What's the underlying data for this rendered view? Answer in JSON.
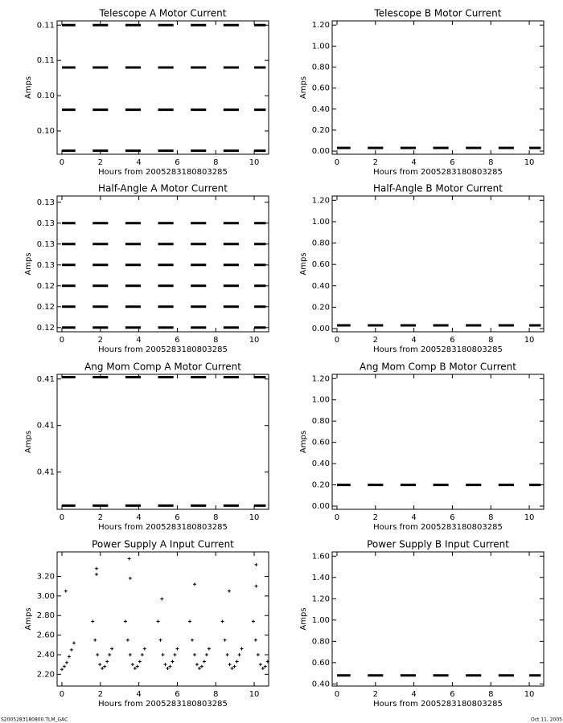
{
  "chart_data": [
    {
      "type": "line",
      "title": "Telescope A Motor Current",
      "xlabel": "Hours from 2005283180803285",
      "ylabel": "Amps",
      "x": [
        0,
        0.7,
        1.15,
        1.6,
        2.4,
        2.85,
        3.3,
        4.1,
        4.55,
        5.0,
        5.8,
        6.25,
        6.7,
        7.5,
        7.95,
        8.4,
        9.2,
        9.6,
        10.0,
        10.6
      ],
      "xlim": [
        -0.25,
        10.75
      ],
      "xticks": [
        0,
        2,
        4,
        6,
        8,
        10
      ],
      "ylim": [
        0.10367,
        0.10556
      ],
      "yticks": [
        {
          "value": 0.104,
          "label": "0.10"
        },
        {
          "value": 0.1045,
          "label": "0.10"
        },
        {
          "value": 0.105,
          "label": "0.11"
        },
        {
          "value": 0.1055,
          "label": "0.11"
        }
      ],
      "series": [
        {
          "color": "#000000",
          "values": [
            0.1055,
            0.1055,
            null,
            0.1055,
            0.1055,
            null,
            0.1055,
            0.1055,
            null,
            0.1055,
            0.1055,
            null,
            0.1055,
            0.1055,
            null,
            0.1055,
            0.1055,
            null,
            0.1055,
            0.1055
          ]
        },
        {
          "color": "#000000",
          "values": [
            0.1049,
            0.1049,
            null,
            0.1049,
            0.1049,
            null,
            0.1049,
            0.1049,
            null,
            0.1049,
            0.1049,
            null,
            0.1049,
            0.1049,
            null,
            0.1049,
            0.1049,
            null,
            0.1049,
            0.1049
          ]
        },
        {
          "color": "#000000",
          "values": [
            0.1043,
            0.1043,
            null,
            0.1043,
            0.1043,
            null,
            0.1043,
            0.1043,
            null,
            0.1043,
            0.1043,
            null,
            0.1043,
            0.1043,
            null,
            0.1043,
            0.1043,
            null,
            0.1043,
            0.1043
          ]
        },
        {
          "color": "#000000",
          "values": [
            0.10372,
            0.10372,
            null,
            0.10372,
            0.10372,
            null,
            0.10372,
            0.10372,
            null,
            0.10372,
            0.10372,
            null,
            0.10372,
            0.10372,
            null,
            0.10372,
            0.10372,
            null,
            0.10372,
            0.10372
          ]
        }
      ]
    },
    {
      "type": "line",
      "title": "Telescope B Motor Current",
      "xlabel": "Hours from 2005283180803285",
      "ylabel": "Amps",
      "x": [
        0,
        0.7,
        1.15,
        1.6,
        2.4,
        2.85,
        3.3,
        4.1,
        4.55,
        5.0,
        5.8,
        6.25,
        6.7,
        7.5,
        7.95,
        8.4,
        9.2,
        9.6,
        10.0,
        10.6
      ],
      "xlim": [
        -0.25,
        10.75
      ],
      "xticks": [
        0,
        2,
        4,
        6,
        8,
        10
      ],
      "ylim": [
        -0.03,
        1.24
      ],
      "yticks": [
        {
          "value": 0,
          "label": "0.00"
        },
        {
          "value": 0.2,
          "label": "0.20"
        },
        {
          "value": 0.4,
          "label": "0.40"
        },
        {
          "value": 0.6,
          "label": "0.60"
        },
        {
          "value": 0.8,
          "label": "0.80"
        },
        {
          "value": 1,
          "label": "1.00"
        },
        {
          "value": 1.2,
          "label": "1.20"
        }
      ],
      "series": [
        {
          "color": "#000000",
          "values": [
            0.03,
            0.03,
            null,
            0.03,
            0.03,
            null,
            0.03,
            0.03,
            null,
            0.03,
            0.03,
            null,
            0.03,
            0.03,
            null,
            0.03,
            0.03,
            null,
            0.03,
            0.03
          ]
        }
      ]
    },
    {
      "type": "line",
      "title": "Half-Angle A Motor Current",
      "xlabel": "Hours from 2005283180803285",
      "ylabel": "Amps",
      "x": [
        0,
        0.7,
        1.15,
        1.6,
        2.4,
        2.85,
        3.3,
        4.1,
        4.55,
        5.0,
        5.8,
        6.25,
        6.7,
        7.5,
        7.95,
        8.4,
        9.2,
        9.6,
        10.0,
        10.6
      ],
      "xlim": [
        -0.25,
        10.75
      ],
      "xticks": [
        0,
        2,
        4,
        6,
        8,
        10
      ],
      "ylim": [
        0.1234,
        0.12665
      ],
      "yticks": [
        {
          "value": 0.1235,
          "label": "0.12"
        },
        {
          "value": 0.124,
          "label": "0.12"
        },
        {
          "value": 0.1245,
          "label": "0.12"
        },
        {
          "value": 0.125,
          "label": "0.13"
        },
        {
          "value": 0.1255,
          "label": "0.13"
        },
        {
          "value": 0.126,
          "label": "0.13"
        },
        {
          "value": 0.1265,
          "label": "0.13"
        }
      ],
      "series": [
        {
          "color": "#000000",
          "values": [
            0.126,
            0.126,
            null,
            0.126,
            0.126,
            null,
            0.126,
            0.126,
            null,
            0.126,
            0.126,
            null,
            0.126,
            0.126,
            null,
            0.126,
            0.126,
            null,
            0.126,
            0.126
          ]
        },
        {
          "color": "#000000",
          "values": [
            0.1255,
            0.1255,
            null,
            0.1255,
            0.1255,
            null,
            0.1255,
            0.1255,
            null,
            0.1255,
            0.1255,
            null,
            0.1255,
            0.1255,
            null,
            0.1255,
            0.1255,
            null,
            0.1255,
            0.1255
          ]
        },
        {
          "color": "#000000",
          "values": [
            0.125,
            0.125,
            null,
            0.125,
            0.125,
            null,
            0.125,
            0.125,
            null,
            0.125,
            0.125,
            null,
            0.125,
            0.125,
            null,
            0.125,
            0.125,
            null,
            0.125,
            0.125
          ]
        },
        {
          "color": "#000000",
          "values": [
            0.1245,
            0.1245,
            null,
            0.1245,
            0.1245,
            null,
            0.1245,
            0.1245,
            null,
            0.1245,
            0.1245,
            null,
            0.1245,
            0.1245,
            null,
            0.1245,
            0.1245,
            null,
            0.1245,
            0.1245
          ]
        },
        {
          "color": "#000000",
          "values": [
            0.124,
            0.124,
            null,
            0.124,
            0.124,
            null,
            0.124,
            0.124,
            null,
            0.124,
            0.124,
            null,
            0.124,
            0.124,
            null,
            0.124,
            0.124,
            null,
            0.124,
            0.124
          ]
        },
        {
          "color": "#000000",
          "values": [
            0.1235,
            0.1235,
            null,
            0.1235,
            0.1235,
            null,
            0.1235,
            0.1235,
            null,
            0.1235,
            0.1235,
            null,
            0.1235,
            0.1235,
            null,
            0.1235,
            0.1235,
            null,
            0.1235,
            0.1235
          ]
        }
      ]
    },
    {
      "type": "line",
      "title": "Half-Angle B Motor Current",
      "xlabel": "Hours from 2005283180803285",
      "ylabel": "Amps",
      "x": [
        0,
        0.7,
        1.15,
        1.6,
        2.4,
        2.85,
        3.3,
        4.1,
        4.55,
        5.0,
        5.8,
        6.25,
        6.7,
        7.5,
        7.95,
        8.4,
        9.2,
        9.6,
        10.0,
        10.6
      ],
      "xlim": [
        -0.25,
        10.75
      ],
      "xticks": [
        0,
        2,
        4,
        6,
        8,
        10
      ],
      "ylim": [
        -0.03,
        1.24
      ],
      "yticks": [
        {
          "value": 0,
          "label": "0.00"
        },
        {
          "value": 0.2,
          "label": "0.20"
        },
        {
          "value": 0.4,
          "label": "0.40"
        },
        {
          "value": 0.6,
          "label": "0.60"
        },
        {
          "value": 0.8,
          "label": "0.80"
        },
        {
          "value": 1,
          "label": "1.00"
        },
        {
          "value": 1.2,
          "label": "1.20"
        }
      ],
      "series": [
        {
          "color": "#000000",
          "values": [
            0.03,
            0.03,
            null,
            0.03,
            0.03,
            null,
            0.03,
            0.03,
            null,
            0.03,
            0.03,
            null,
            0.03,
            0.03,
            null,
            0.03,
            0.03,
            null,
            0.03,
            0.03
          ]
        }
      ]
    },
    {
      "type": "line",
      "title": "Ang Mom Comp A Motor Current",
      "xlabel": "Hours from 2005283180803285",
      "ylabel": "Amps",
      "x": [
        0,
        0.7,
        1.15,
        1.6,
        2.4,
        2.85,
        3.3,
        4.1,
        4.55,
        5.0,
        5.8,
        6.25,
        6.7,
        7.5,
        7.95,
        8.4,
        9.2,
        9.6,
        10.0,
        10.6
      ],
      "xlim": [
        -0.25,
        10.75
      ],
      "xticks": [
        0,
        2,
        4,
        6,
        8,
        10
      ],
      "ylim": [
        0.4101,
        0.41155
      ],
      "yticks": [
        {
          "value": 0.4105,
          "label": "0.41"
        },
        {
          "value": 0.411,
          "label": "0.41"
        },
        {
          "value": 0.4115,
          "label": "0.41"
        }
      ],
      "series": [
        {
          "color": "#000000",
          "values": [
            0.41152,
            0.41152,
            null,
            0.41152,
            0.41152,
            null,
            0.41152,
            0.41152,
            null,
            0.41152,
            0.41152,
            null,
            0.41152,
            0.41152,
            null,
            0.41152,
            0.41152,
            null,
            0.41152,
            0.41152
          ]
        },
        {
          "color": "#000000",
          "values": [
            0.41014,
            0.41014,
            null,
            0.41014,
            0.41014,
            null,
            0.41014,
            0.41014,
            null,
            0.41014,
            0.41014,
            null,
            0.41014,
            0.41014,
            null,
            0.41014,
            0.41014,
            null,
            0.41014,
            0.41014
          ]
        }
      ]
    },
    {
      "type": "line",
      "title": "Ang Mom Comp B Motor Current",
      "xlabel": "Hours from 2005283180803285",
      "ylabel": "Amps",
      "x": [
        0,
        0.7,
        1.15,
        1.6,
        2.4,
        2.85,
        3.3,
        4.1,
        4.55,
        5.0,
        5.8,
        6.25,
        6.7,
        7.5,
        7.95,
        8.4,
        9.2,
        9.6,
        10.0,
        10.6
      ],
      "xlim": [
        -0.25,
        10.75
      ],
      "xticks": [
        0,
        2,
        4,
        6,
        8,
        10
      ],
      "ylim": [
        -0.03,
        1.24
      ],
      "yticks": [
        {
          "value": 0,
          "label": "0.00"
        },
        {
          "value": 0.2,
          "label": "0.20"
        },
        {
          "value": 0.4,
          "label": "0.40"
        },
        {
          "value": 0.6,
          "label": "0.60"
        },
        {
          "value": 0.8,
          "label": "0.80"
        },
        {
          "value": 1,
          "label": "1.00"
        },
        {
          "value": 1.2,
          "label": "1.20"
        }
      ],
      "series": [
        {
          "color": "#000000",
          "values": [
            0.2,
            0.2,
            null,
            0.2,
            0.2,
            null,
            0.2,
            0.2,
            null,
            0.2,
            0.2,
            null,
            0.2,
            0.2,
            null,
            0.2,
            0.2,
            null,
            0.2,
            0.2
          ]
        }
      ]
    },
    {
      "type": "scatter",
      "title": "Power Supply A Input Current",
      "xlabel": "Hours from 2005283180803285",
      "ylabel": "Amps",
      "x": [
        0,
        0.125,
        0.25,
        0.375,
        0.5,
        0.625,
        1.6,
        1.725,
        1.85,
        1.975,
        2.1,
        2.225,
        2.35,
        2.475,
        2.6,
        3.3,
        3.425,
        3.55,
        3.675,
        3.8,
        3.925,
        4.05,
        4.175,
        4.3,
        5.0,
        5.125,
        5.25,
        5.375,
        5.5,
        5.625,
        5.75,
        5.875,
        6.0,
        6.65,
        6.775,
        6.9,
        7.025,
        7.15,
        7.275,
        7.4,
        7.525,
        7.65,
        8.35,
        8.475,
        8.6,
        8.725,
        8.85,
        8.975,
        9.1,
        9.225,
        9.35,
        9.95,
        10.075,
        10.2,
        10.325,
        10.45,
        10.575,
        10.7,
        0.2,
        1.8,
        1.8,
        3.5,
        3.55,
        5.2,
        6.9,
        8.7,
        10.1,
        10.1
      ],
      "xlim": [
        -0.25,
        10.75
      ],
      "xticks": [
        0,
        2,
        4,
        6,
        8,
        10
      ],
      "ylim": [
        2.08,
        3.45
      ],
      "yticks": [
        {
          "value": 2.2,
          "label": "2.20"
        },
        {
          "value": 2.4,
          "label": "2.40"
        },
        {
          "value": 2.6,
          "label": "2.60"
        },
        {
          "value": 2.8,
          "label": "2.80"
        },
        {
          "value": 3,
          "label": "3.00"
        },
        {
          "value": 3.2,
          "label": "3.20"
        }
      ],
      "color": "#000000",
      "values": [
        2.25,
        2.28,
        2.32,
        2.38,
        2.45,
        2.52,
        2.74,
        2.55,
        2.4,
        2.3,
        2.26,
        2.28,
        2.33,
        2.4,
        2.46,
        2.74,
        2.55,
        2.4,
        2.3,
        2.26,
        2.28,
        2.33,
        2.4,
        2.46,
        2.74,
        2.55,
        2.4,
        2.3,
        2.26,
        2.28,
        2.33,
        2.4,
        2.46,
        2.74,
        2.55,
        2.4,
        2.3,
        2.26,
        2.28,
        2.33,
        2.4,
        2.46,
        2.74,
        2.55,
        2.4,
        2.3,
        2.26,
        2.28,
        2.33,
        2.4,
        2.46,
        2.74,
        2.55,
        2.4,
        2.3,
        2.26,
        2.28,
        2.33,
        3.05,
        3.28,
        3.22,
        3.38,
        3.18,
        2.97,
        3.12,
        3.05,
        3.32,
        3.1
      ]
    },
    {
      "type": "line",
      "title": "Power Supply B Input Current",
      "xlabel": "Hours from 2005283180803285",
      "ylabel": "Amps",
      "x": [
        0,
        0.7,
        1.15,
        1.6,
        2.4,
        2.85,
        3.3,
        4.1,
        4.55,
        5.0,
        5.8,
        6.25,
        6.7,
        7.5,
        7.95,
        8.4,
        9.2,
        9.6,
        10.0,
        10.6
      ],
      "xlim": [
        -0.25,
        10.75
      ],
      "xticks": [
        0,
        2,
        4,
        6,
        8,
        10
      ],
      "ylim": [
        0.38,
        1.64
      ],
      "yticks": [
        {
          "value": 0.4,
          "label": "0.40"
        },
        {
          "value": 0.6,
          "label": "0.60"
        },
        {
          "value": 0.8,
          "label": "0.80"
        },
        {
          "value": 1,
          "label": "1.00"
        },
        {
          "value": 1.2,
          "label": "1.20"
        },
        {
          "value": 1.4,
          "label": "1.40"
        },
        {
          "value": 1.6,
          "label": "1.60"
        }
      ],
      "series": [
        {
          "color": "#000000",
          "values": [
            0.48,
            0.48,
            null,
            0.48,
            0.48,
            null,
            0.48,
            0.48,
            null,
            0.48,
            0.48,
            null,
            0.48,
            0.48,
            null,
            0.48,
            0.48,
            null,
            0.48,
            0.48
          ]
        }
      ]
    }
  ],
  "footer": {
    "left": "S2005283180800.TLM_GAC",
    "right": "Oct 11, 2005"
  }
}
